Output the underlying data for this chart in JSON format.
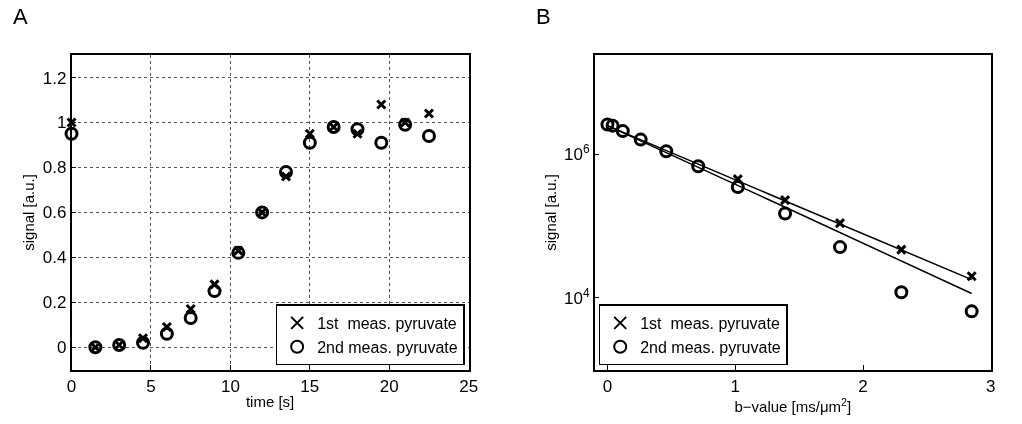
{
  "chart_data": [
    {
      "type": "scatter",
      "title": "A",
      "xlabel": "time [s]",
      "ylabel": "signal [a.u.]",
      "xlim": [
        0,
        25
      ],
      "xticks": [
        0,
        5,
        10,
        15,
        20,
        25
      ],
      "ylim": [
        -0.1,
        1.3
      ],
      "yticks": [
        0,
        0.2,
        0.4,
        0.6,
        0.8,
        1,
        1.2
      ],
      "grid": true,
      "legend": "bottom right",
      "x": [
        0,
        1.5,
        3,
        4.5,
        6,
        7.5,
        9,
        10.5,
        12,
        13.5,
        15,
        16.5,
        18,
        19.5,
        21,
        22.5
      ],
      "series": [
        {
          "name": "1st  meas. pyruvate",
          "color": "#000000",
          "marker": "cross",
          "values": [
            1.0,
            0.0,
            0.01,
            0.04,
            0.09,
            0.17,
            0.28,
            0.43,
            0.6,
            0.76,
            0.95,
            0.98,
            0.95,
            1.08,
            1.0,
            1.04
          ]
        },
        {
          "name": "2nd meas. pyruvate",
          "color": "#000000",
          "marker": "circle",
          "values": [
            0.95,
            0.0,
            0.01,
            0.02,
            0.06,
            0.13,
            0.25,
            0.42,
            0.6,
            0.78,
            0.91,
            0.98,
            0.97,
            0.91,
            0.99,
            0.94
          ]
        }
      ]
    },
    {
      "type": "scatter",
      "title": "B",
      "xlabel": "b−value [ms/μm$^{2}$]",
      "ylabel": "signal [a.u.]",
      "xlim": [
        -0.1,
        3
      ],
      "xticks": [
        0,
        1,
        2,
        3
      ],
      "ylim": [
        1000,
        24000000
      ],
      "yticks": [
        {
          "value": 10000,
          "label": "10$^{4}$"
        },
        {
          "value": 1000000,
          "label": "10$^{6}$"
        }
      ],
      "log": true,
      "grid": false,
      "legend": "bottom left",
      "x": [
        0,
        0.04,
        0.12,
        0.26,
        0.46,
        0.71,
        1.02,
        1.39,
        1.82,
        2.3,
        2.85
      ],
      "series": [
        {
          "name": "1st  meas. pyruvate",
          "color": "#000000",
          "marker": "cross",
          "values": [
            null,
            null,
            null,
            null,
            null,
            null,
            450000,
            230000,
            110000,
            47000,
            20000
          ]
        },
        {
          "name": "2nd meas. pyruvate",
          "color": "#000000",
          "marker": "circle",
          "values": [
            2600000,
            2500000,
            2100000,
            1600000,
            1100000,
            680000,
            350000,
            150000,
            51000,
            12000,
            6500
          ]
        },
        {
          "type": "line",
          "color": "#000000",
          "marker": "none",
          "line_style": "solid",
          "x": [
            0,
            1.4,
            2.85
          ],
          "values": [
            2500000,
            220000,
            18000
          ]
        },
        {
          "type": "line",
          "color": "#000000",
          "marker": "none",
          "line_style": "solid",
          "x": [
            0,
            1.4,
            2.85
          ],
          "values": [
            2500000,
            180000,
            11500
          ]
        }
      ]
    }
  ]
}
